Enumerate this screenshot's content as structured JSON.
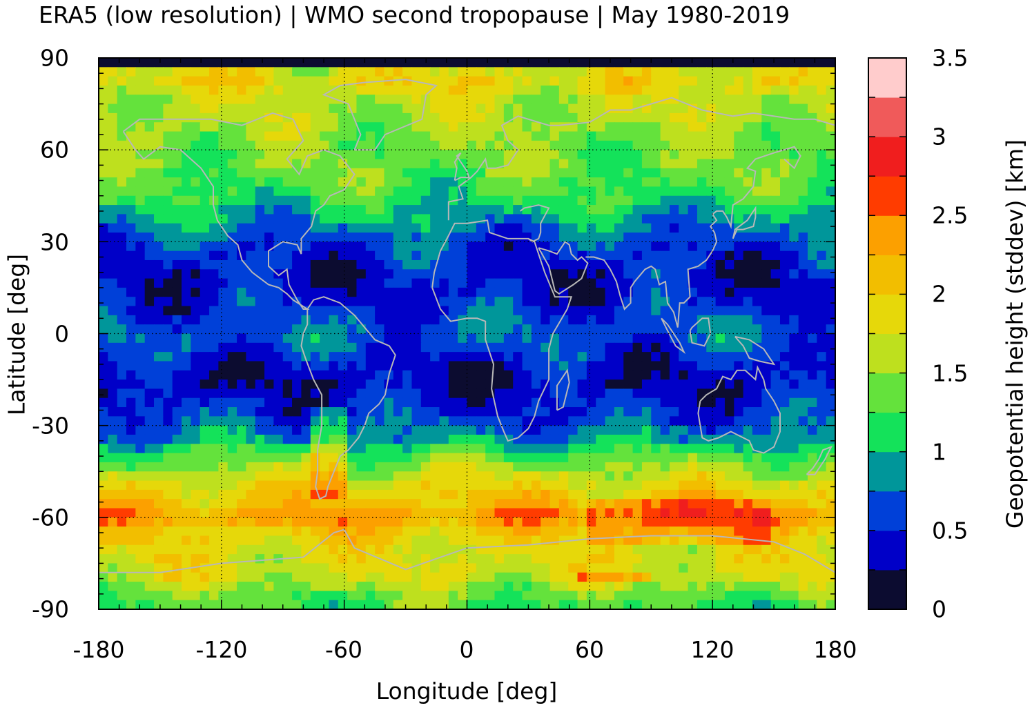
{
  "title": "ERA5 (low resolution) | WMO second tropopause | May 1980-2019",
  "map": {
    "type": "heatmap",
    "projection": "equirectangular",
    "xlabel": "Longitude [deg]",
    "ylabel": "Latitude [deg]",
    "xlim": [
      -180,
      180
    ],
    "ylim": [
      -90,
      90
    ],
    "xticks": [
      "-180",
      "-120",
      "-60",
      "0",
      "60",
      "120",
      "180"
    ],
    "yticks": [
      "90",
      "60",
      "30",
      "0",
      "-30",
      "-60",
      "-90"
    ],
    "grid": true,
    "coastline_color": "#b8b8b8",
    "colorbar": {
      "label": "Geopotential height (stddev) [km]",
      "range": [
        0,
        3.5
      ],
      "step": 0.25,
      "ticks": [
        "0",
        "0.5",
        "1",
        "1.5",
        "2",
        "2.5",
        "3",
        "3.5"
      ],
      "colors": [
        "#0c0c30",
        "#0000c8",
        "#0040d8",
        "#00969a",
        "#14e25a",
        "#64e23c",
        "#bee01e",
        "#e6d80a",
        "#f2be00",
        "#fca000",
        "#ff3c00",
        "#f01e1e",
        "#f05a5a",
        "#ffcccc"
      ]
    },
    "zonal_profile": {
      "latitudes": [
        90,
        85,
        80,
        75,
        70,
        65,
        60,
        55,
        50,
        45,
        40,
        35,
        30,
        25,
        20,
        15,
        10,
        5,
        0,
        -5,
        -10,
        -15,
        -20,
        -25,
        -30,
        -35,
        -40,
        -45,
        -50,
        -55,
        -60,
        -65,
        -70,
        -75,
        -80,
        -85,
        -90
      ],
      "stddev_km": [
        0.1,
        2.0,
        1.8,
        1.6,
        1.6,
        1.5,
        1.4,
        1.4,
        1.3,
        1.2,
        1.0,
        0.8,
        0.6,
        0.5,
        0.4,
        0.4,
        0.5,
        0.6,
        0.7,
        0.6,
        0.4,
        0.3,
        0.4,
        0.5,
        0.7,
        0.9,
        1.3,
        1.6,
        1.9,
        2.1,
        2.4,
        2.0,
        1.8,
        1.8,
        1.7,
        1.4,
        1.2
      ]
    }
  }
}
